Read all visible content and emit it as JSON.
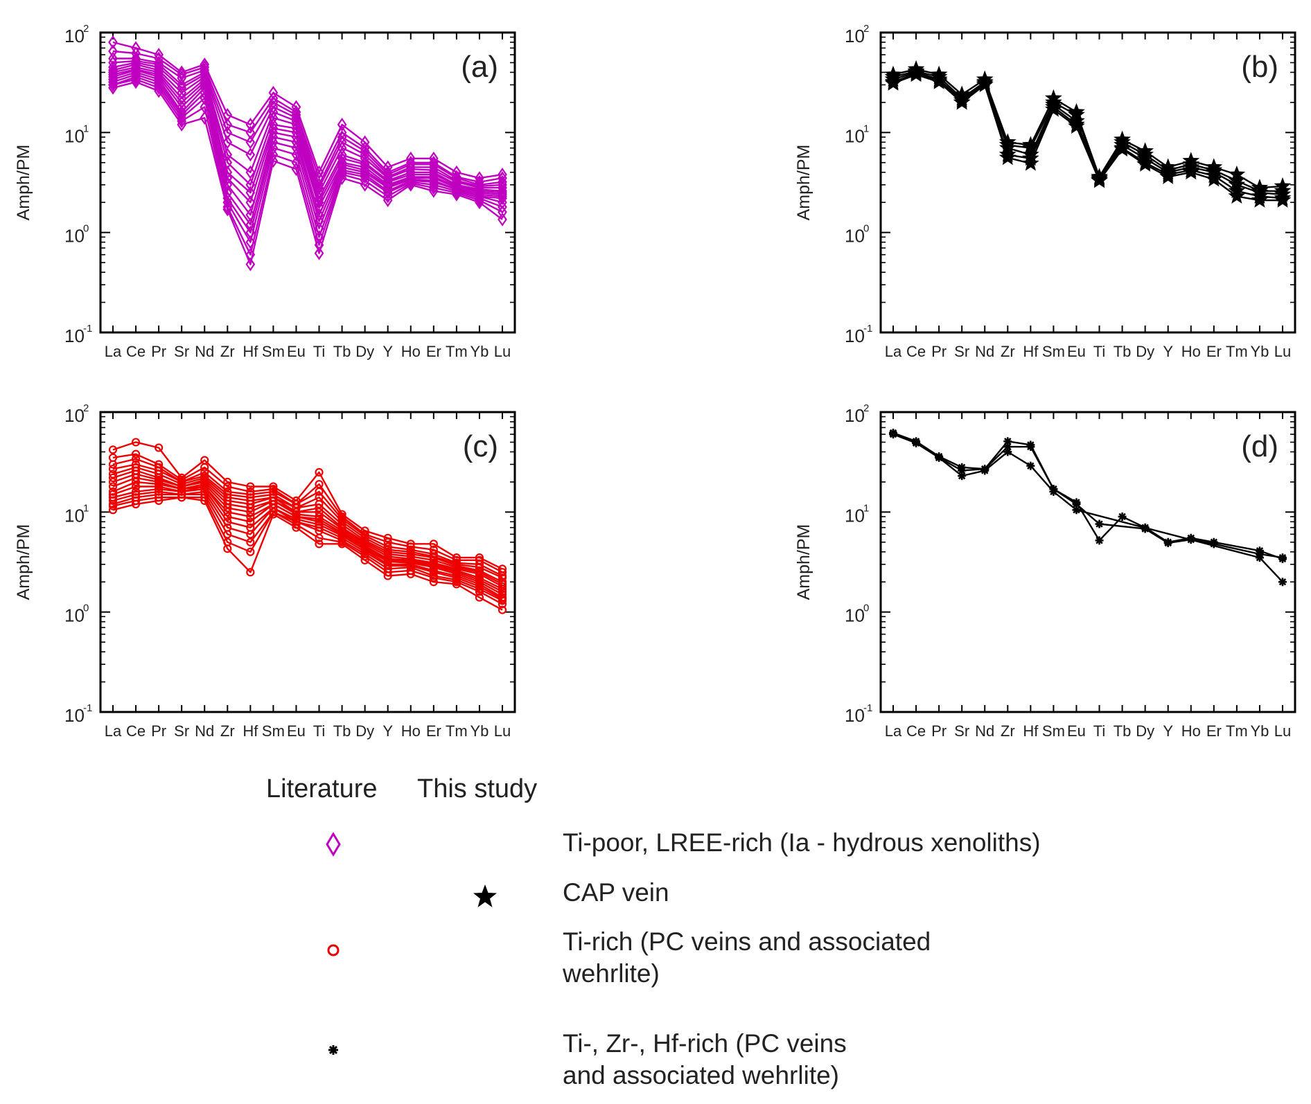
{
  "chart_data": [
    {
      "type": "line",
      "panel_label": "(a)",
      "ylabel": "Amph/PM",
      "yscale": "log",
      "ylim": [
        0.1,
        100
      ],
      "ytick_labels": [
        "10",
        "10",
        "10",
        "10"
      ],
      "ytick_exponents": [
        "2",
        "1",
        "0",
        "-1"
      ],
      "categories": [
        "La",
        "Ce",
        "Pr",
        "Sr",
        "Nd",
        "Zr",
        "Hf",
        "Sm",
        "Eu",
        "Ti",
        "Tb",
        "Dy",
        "Y",
        "Ho",
        "Er",
        "Tm",
        "Yb",
        "Lu"
      ],
      "marker": "diamond-open",
      "color": "#c000c0",
      "series": [
        {
          "name": "a1",
          "values": [
            80,
            70,
            60,
            40,
            48,
            15,
            12,
            25,
            18,
            4,
            12,
            8,
            4.5,
            5.5,
            5.5,
            4,
            3.5,
            3.8
          ]
        },
        {
          "name": "a2",
          "values": [
            65,
            62,
            55,
            38,
            45,
            12,
            10,
            22,
            16,
            3.5,
            10,
            7,
            4,
            5,
            5,
            3.6,
            3.2,
            3.5
          ]
        },
        {
          "name": "a3",
          "values": [
            55,
            55,
            50,
            35,
            42,
            10,
            8,
            20,
            15,
            3,
            9,
            6.5,
            3.8,
            4.8,
            4.8,
            3.5,
            3,
            3.2
          ]
        },
        {
          "name": "a4",
          "values": [
            50,
            52,
            48,
            30,
            40,
            8,
            6,
            18,
            14,
            2.8,
            8,
            6,
            3.6,
            4.5,
            4.5,
            3.3,
            2.9,
            3
          ]
        },
        {
          "name": "a5",
          "values": [
            45,
            50,
            45,
            28,
            38,
            6,
            4,
            16,
            13,
            2.5,
            7,
            5.5,
            3.5,
            4.3,
            4.2,
            3.2,
            2.8,
            2.8
          ]
        },
        {
          "name": "a6",
          "values": [
            42,
            48,
            42,
            25,
            36,
            5,
            3,
            14,
            12,
            2.2,
            6,
            5,
            3.3,
            4,
            4,
            3,
            2.7,
            2.6
          ]
        },
        {
          "name": "a7",
          "values": [
            40,
            45,
            40,
            22,
            34,
            4,
            2.5,
            12,
            11,
            2,
            5.5,
            4.8,
            3.2,
            3.8,
            3.8,
            3,
            2.6,
            2.5
          ]
        },
        {
          "name": "a8",
          "values": [
            38,
            43,
            38,
            20,
            32,
            3.5,
            2,
            11,
            10,
            1.8,
            5,
            4.5,
            3,
            3.6,
            3.6,
            2.9,
            2.5,
            2.4
          ]
        },
        {
          "name": "a9",
          "values": [
            36,
            42,
            36,
            18,
            30,
            3,
            1.5,
            10,
            9,
            1.5,
            4.8,
            4.2,
            2.9,
            3.5,
            3.5,
            2.8,
            2.4,
            2.3
          ]
        },
        {
          "name": "a10",
          "values": [
            34,
            40,
            34,
            16,
            28,
            2.5,
            1.2,
            9,
            8,
            1.3,
            4.5,
            4,
            2.8,
            3.4,
            3.3,
            2.7,
            2.3,
            2.2
          ]
        },
        {
          "name": "a11",
          "values": [
            32,
            38,
            32,
            15,
            25,
            2.2,
            1,
            8,
            7,
            1.1,
            4.2,
            3.8,
            2.6,
            3.3,
            3.2,
            2.7,
            2.3,
            2
          ]
        },
        {
          "name": "a12",
          "values": [
            30,
            36,
            30,
            14,
            22,
            2,
            0.8,
            7,
            6,
            0.9,
            4,
            3.6,
            2.5,
            3.2,
            3,
            2.6,
            2.2,
            1.8
          ]
        },
        {
          "name": "a13",
          "values": [
            30,
            34,
            28,
            13,
            18,
            1.8,
            0.6,
            6,
            5,
            0.75,
            3.8,
            3.3,
            2.3,
            3.1,
            2.8,
            2.5,
            2.1,
            1.6
          ]
        },
        {
          "name": "a14",
          "values": [
            28,
            32,
            26,
            12,
            14,
            1.7,
            0.48,
            5.2,
            4.3,
            0.62,
            3.5,
            3,
            2.1,
            3,
            2.6,
            2.4,
            2,
            1.35
          ]
        }
      ]
    },
    {
      "type": "line",
      "panel_label": "(b)",
      "ylabel": "Amph/PM",
      "yscale": "log",
      "ylim": [
        0.1,
        100
      ],
      "ytick_labels": [
        "10",
        "10",
        "10",
        "10"
      ],
      "ytick_exponents": [
        "2",
        "1",
        "0",
        "-1"
      ],
      "categories": [
        "La",
        "Ce",
        "Pr",
        "Sr",
        "Nd",
        "Zr",
        "Hf",
        "Sm",
        "Eu",
        "Ti",
        "Tb",
        "Dy",
        "Y",
        "Ho",
        "Er",
        "Tm",
        "Yb",
        "Lu"
      ],
      "marker": "star-filled",
      "color": "#000000",
      "series": [
        {
          "name": "b1",
          "values": [
            38,
            43,
            38,
            24,
            34,
            8,
            7.5,
            22,
            16,
            3.6,
            8.5,
            6.5,
            4.5,
            5.2,
            4.5,
            3.8,
            2.8,
            2.9
          ]
        },
        {
          "name": "b2",
          "values": [
            36,
            41,
            36,
            22,
            32,
            7.5,
            7,
            20,
            15,
            3.5,
            8,
            6,
            4.2,
            4.8,
            4.2,
            3.3,
            2.6,
            2.6
          ]
        },
        {
          "name": "b3",
          "values": [
            34,
            40,
            34,
            21,
            31,
            7,
            6,
            19,
            13,
            3.4,
            7.5,
            5.5,
            4,
            4.5,
            4,
            3,
            2.5,
            2.4
          ]
        },
        {
          "name": "b4",
          "values": [
            32,
            39,
            33,
            20,
            30,
            6,
            5.5,
            18,
            12,
            3.3,
            7,
            5,
            3.8,
            4.2,
            3.7,
            2.6,
            2.3,
            2.2
          ]
        },
        {
          "name": "b5",
          "values": [
            31,
            38,
            32,
            20,
            30,
            5.6,
            4.9,
            17,
            11.5,
            3.3,
            6.8,
            4.8,
            3.6,
            4,
            3.4,
            2.3,
            2.1,
            2.1
          ]
        }
      ]
    },
    {
      "type": "line",
      "panel_label": "(c)",
      "ylabel": "Amph/PM",
      "yscale": "log",
      "ylim": [
        0.1,
        100
      ],
      "ytick_labels": [
        "10",
        "10",
        "10",
        "10"
      ],
      "ytick_exponents": [
        "2",
        "1",
        "0",
        "-1"
      ],
      "categories": [
        "La",
        "Ce",
        "Pr",
        "Sr",
        "Nd",
        "Zr",
        "Hf",
        "Sm",
        "Eu",
        "Ti",
        "Tb",
        "Dy",
        "Y",
        "Ho",
        "Er",
        "Tm",
        "Yb",
        "Lu"
      ],
      "marker": "circle-open",
      "color": "#ee0000",
      "series": [
        {
          "name": "c1",
          "values": [
            42,
            50,
            44,
            22,
            33,
            20,
            18,
            18,
            13,
            25,
            9.5,
            6.5,
            5.5,
            4.8,
            4.8,
            3.5,
            3.5,
            2.7
          ]
        },
        {
          "name": "c2",
          "values": [
            35,
            38,
            30,
            21,
            28,
            18,
            16,
            17,
            12,
            19,
            9,
            6,
            5,
            4.5,
            4.2,
            3.3,
            3.3,
            2.5
          ]
        },
        {
          "name": "c3",
          "values": [
            30,
            34,
            28,
            20,
            25,
            16,
            15,
            16,
            12,
            16,
            8.5,
            5.8,
            4.5,
            4.2,
            3.8,
            3.1,
            3,
            2.3
          ]
        },
        {
          "name": "c4",
          "values": [
            27,
            30,
            26,
            20,
            23,
            15,
            14,
            15,
            11,
            14,
            8,
            5.5,
            4.2,
            4,
            3.6,
            3,
            2.8,
            2.2
          ]
        },
        {
          "name": "c5",
          "values": [
            24,
            28,
            24,
            19,
            22,
            14,
            13,
            14,
            11,
            12,
            7.5,
            5.2,
            4,
            3.8,
            3.5,
            2.9,
            2.6,
            2
          ]
        },
        {
          "name": "c6",
          "values": [
            22,
            26,
            22,
            18,
            21,
            13,
            12,
            14,
            10,
            11,
            7,
            5,
            3.8,
            3.6,
            3.3,
            2.8,
            2.5,
            1.9
          ]
        },
        {
          "name": "c7",
          "values": [
            20,
            24,
            21,
            18,
            20,
            12,
            11,
            13,
            10,
            10,
            6.8,
            4.8,
            3.6,
            3.4,
            3.1,
            2.7,
            2.4,
            1.8
          ]
        },
        {
          "name": "c8",
          "values": [
            18,
            22,
            20,
            17,
            19,
            11,
            10,
            13,
            9.5,
            9,
            6.5,
            4.6,
            3.4,
            3.3,
            3,
            2.6,
            2.2,
            1.7
          ]
        },
        {
          "name": "c9",
          "values": [
            16,
            20,
            19,
            17,
            18,
            10,
            9,
            12,
            9,
            8.5,
            6.2,
            4.5,
            3.3,
            3.2,
            2.9,
            2.5,
            2.1,
            1.6
          ]
        },
        {
          "name": "c10",
          "values": [
            15,
            18,
            18,
            16,
            18,
            9,
            8,
            12,
            9,
            8,
            6,
            4.3,
            3.2,
            3.1,
            2.8,
            2.4,
            2,
            1.5
          ]
        },
        {
          "name": "c11",
          "values": [
            14,
            16,
            17,
            16,
            17,
            8,
            7,
            11,
            8.5,
            7.5,
            5.8,
            4.2,
            3,
            3,
            2.6,
            2.3,
            1.9,
            1.4
          ]
        },
        {
          "name": "c12",
          "values": [
            13,
            15,
            16,
            15,
            16,
            7,
            6,
            11,
            8,
            7,
            5.5,
            4,
            2.9,
            2.9,
            2.5,
            2.2,
            1.8,
            1.35
          ]
        },
        {
          "name": "c13",
          "values": [
            12,
            14,
            15,
            15,
            15,
            6,
            5,
            10,
            8,
            6.5,
            5.2,
            3.8,
            2.7,
            2.8,
            2.3,
            2.1,
            1.7,
            1.3
          ]
        },
        {
          "name": "c14",
          "values": [
            11.5,
            13,
            14,
            14,
            14,
            5,
            4,
            10,
            7.5,
            5.5,
            5,
            3.6,
            2.5,
            2.6,
            2.2,
            2,
            1.6,
            1.2
          ]
        },
        {
          "name": "c15",
          "values": [
            10.5,
            12,
            13,
            14,
            13,
            4.3,
            2.5,
            9.5,
            7,
            4.8,
            4.8,
            3.3,
            2.3,
            2.4,
            2,
            1.9,
            1.4,
            1.05
          ]
        }
      ]
    },
    {
      "type": "line",
      "panel_label": "(d)",
      "ylabel": "Amph/PM",
      "yscale": "log",
      "ylim": [
        0.1,
        100
      ],
      "ytick_labels": [
        "10",
        "10",
        "10",
        "10"
      ],
      "ytick_exponents": [
        "2",
        "1",
        "0",
        "-1"
      ],
      "categories": [
        "La",
        "Ce",
        "Pr",
        "Sr",
        "Nd",
        "Zr",
        "Hf",
        "Sm",
        "Eu",
        "Ti",
        "Tb",
        "Dy",
        "Y",
        "Ho",
        "Er",
        "Tm",
        "Yb",
        "Lu"
      ],
      "marker": "asterisk",
      "color": "#000000",
      "series": [
        {
          "name": "d1",
          "values": [
            62,
            51,
            36,
            28,
            27,
            51,
            47,
            17,
            12.5,
            5.2,
            9,
            7,
            5,
            5.5,
            5,
            null,
            4.1,
            3.4
          ]
        },
        {
          "name": "d2",
          "values": [
            61,
            50,
            35,
            26,
            27,
            45,
            45,
            17,
            12,
            7.6,
            null,
            6.8,
            4.9,
            5.3,
            4.8,
            null,
            3.8,
            3.5
          ]
        },
        {
          "name": "d3",
          "values": [
            60,
            49,
            35,
            23,
            26,
            40,
            29,
            16,
            10.5,
            null,
            null,
            null,
            null,
            null,
            null,
            null,
            3.5,
            2
          ]
        }
      ]
    }
  ],
  "legend": {
    "col_literature": "Literature",
    "col_this_study": "This study",
    "entries": [
      {
        "symbol": "diamond-open",
        "color": "#c000c0",
        "column": "Literature",
        "line1": "Ti-poor, LREE-rich (Ia - hydrous xenoliths)",
        "line2": ""
      },
      {
        "symbol": "star-filled",
        "color": "#000000",
        "column": "This study",
        "line1": "CAP vein",
        "line2": ""
      },
      {
        "symbol": "circle-open",
        "color": "#ee0000",
        "column": "Literature",
        "line1": "Ti-rich (PC veins and associated",
        "line2": "wehrlite)"
      },
      {
        "symbol": "asterisk",
        "color": "#000000",
        "column": "Literature",
        "line1": "Ti-, Zr-, Hf-rich (PC veins",
        "line2": "and associated wehrlite)"
      }
    ]
  }
}
